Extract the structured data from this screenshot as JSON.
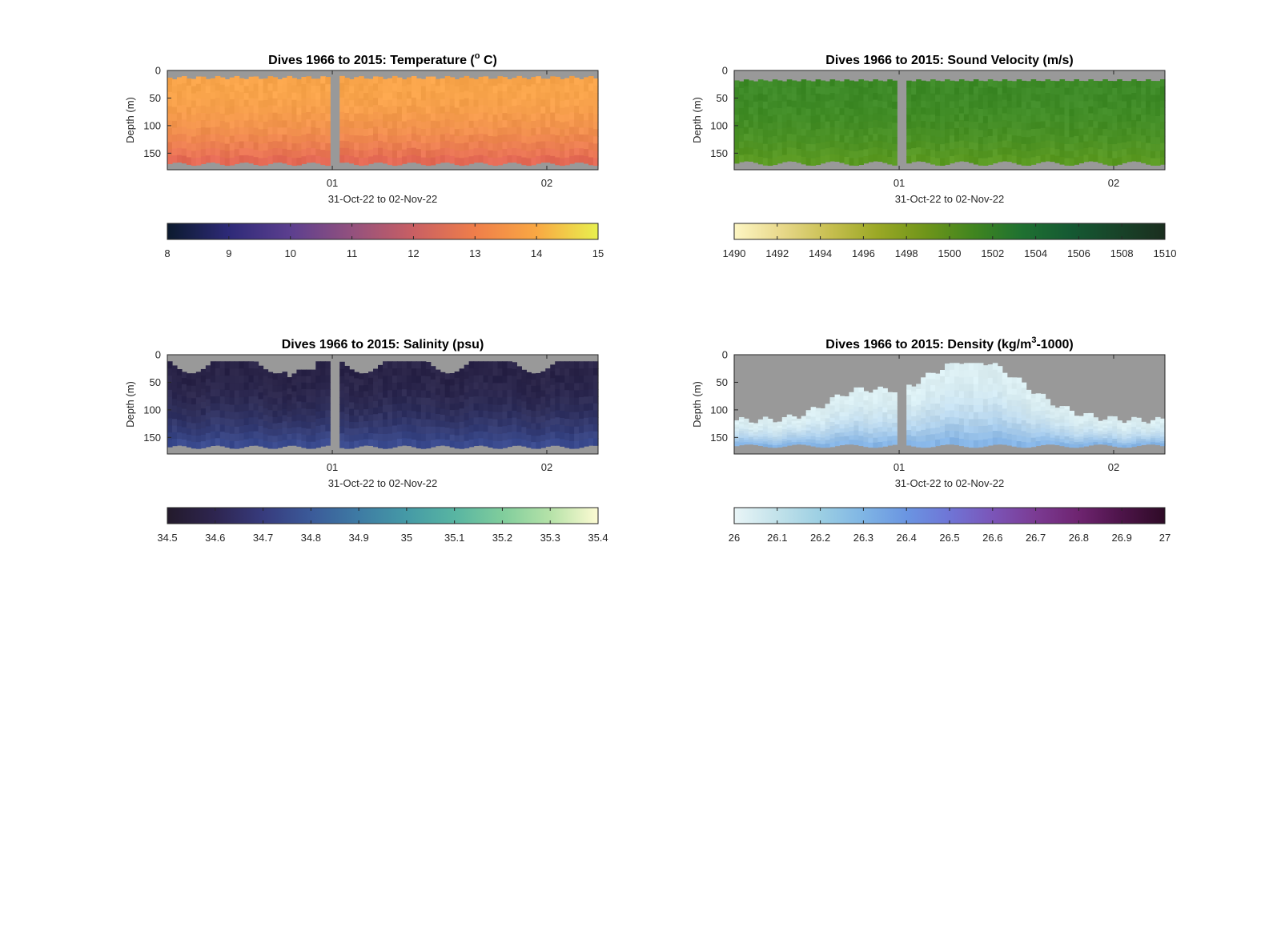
{
  "chart_data": [
    {
      "type": "heatmap",
      "title_text": "Dives 1966 to 2015: Temperature (",
      "title_sup": "o",
      "title_tail": " C)",
      "xlabel": "31-Oct-22 to 02-Nov-22",
      "ylabel": "Depth (m)",
      "x_ticks": [
        "01",
        "02"
      ],
      "y_ticks": [
        "0",
        "50",
        "100",
        "150"
      ],
      "ylim": [
        0,
        180
      ],
      "colorbar": {
        "min": 8,
        "max": 15,
        "ticks": [
          "8",
          "9",
          "10",
          "11",
          "12",
          "13",
          "14",
          "15"
        ],
        "colors": [
          "#0b1a2e",
          "#2e2a78",
          "#5c3f8f",
          "#93517e",
          "#c95f63",
          "#ef7e4a",
          "#f9a843",
          "#e8f04e"
        ]
      },
      "field": {
        "surface": "#f8a44a",
        "bottom": "#e56a55",
        "nodata": "#999999"
      }
    },
    {
      "type": "heatmap",
      "title_text": "Dives 1966 to 2015: Sound Velocity (m/s)",
      "title_sup": "",
      "title_tail": "",
      "xlabel": "31-Oct-22 to 02-Nov-22",
      "ylabel": "Depth (m)",
      "x_ticks": [
        "01",
        "02"
      ],
      "y_ticks": [
        "0",
        "50",
        "100",
        "150"
      ],
      "ylim": [
        0,
        180
      ],
      "colorbar": {
        "min": 1490,
        "max": 1510,
        "ticks": [
          "1490",
          "1492",
          "1494",
          "1496",
          "1498",
          "1500",
          "1502",
          "1504",
          "1506",
          "1508",
          "1510"
        ],
        "colors": [
          "#fdf6c3",
          "#e8d88a",
          "#c7bf50",
          "#9aa825",
          "#6f951a",
          "#40851f",
          "#1f7131",
          "#155a33",
          "#184429",
          "#1a2e1f"
        ]
      },
      "field": {
        "surface": "#3d8a27",
        "bottom": "#5a9a22",
        "nodata": "#999999"
      }
    },
    {
      "type": "heatmap",
      "title_text": "Dives 1966 to 2015: Salinity (psu)",
      "title_sup": "",
      "title_tail": "",
      "xlabel": "31-Oct-22 to 02-Nov-22",
      "ylabel": "Depth (m)",
      "x_ticks": [
        "01",
        "02"
      ],
      "y_ticks": [
        "0",
        "50",
        "100",
        "150"
      ],
      "ylim": [
        0,
        180
      ],
      "colorbar": {
        "min": 34.5,
        "max": 35.4,
        "ticks": [
          "34.5",
          "34.6",
          "34.7",
          "34.8",
          "34.9",
          "35",
          "35.1",
          "35.2",
          "35.3",
          "35.4"
        ],
        "colors": [
          "#231a2b",
          "#2e2550",
          "#373b7d",
          "#3b5a99",
          "#3e7ba4",
          "#459aa6",
          "#58b5a2",
          "#80cd9c",
          "#b5e2a8",
          "#fdfbd3"
        ]
      },
      "field": {
        "surface": "#2a2448",
        "bottom": "#3a4a8e",
        "nodata": "#999999"
      }
    },
    {
      "type": "heatmap",
      "title_text": "Dives 1966 to 2015: Density (kg/m",
      "title_sup": "3",
      "title_tail": "-1000)",
      "xlabel": "31-Oct-22 to 02-Nov-22",
      "ylabel": "Depth (m)",
      "x_ticks": [
        "01",
        "02"
      ],
      "y_ticks": [
        "0",
        "50",
        "100",
        "150"
      ],
      "ylim": [
        0,
        180
      ],
      "colorbar": {
        "min": 26,
        "max": 27,
        "ticks": [
          "26",
          "26.1",
          "26.2",
          "26.3",
          "26.4",
          "26.5",
          "26.6",
          "26.7",
          "26.8",
          "26.9",
          "27"
        ],
        "colors": [
          "#e9f5f7",
          "#c2e2ea",
          "#9ccfe3",
          "#7fb5e4",
          "#6a95e2",
          "#6f75d6",
          "#7b55b8",
          "#7b3b93",
          "#6e2470",
          "#4d1449",
          "#2e0b26"
        ]
      },
      "field": {
        "surface": "#dbeef2",
        "bottom": "#86b5e6",
        "nodata": "#999999"
      }
    }
  ]
}
